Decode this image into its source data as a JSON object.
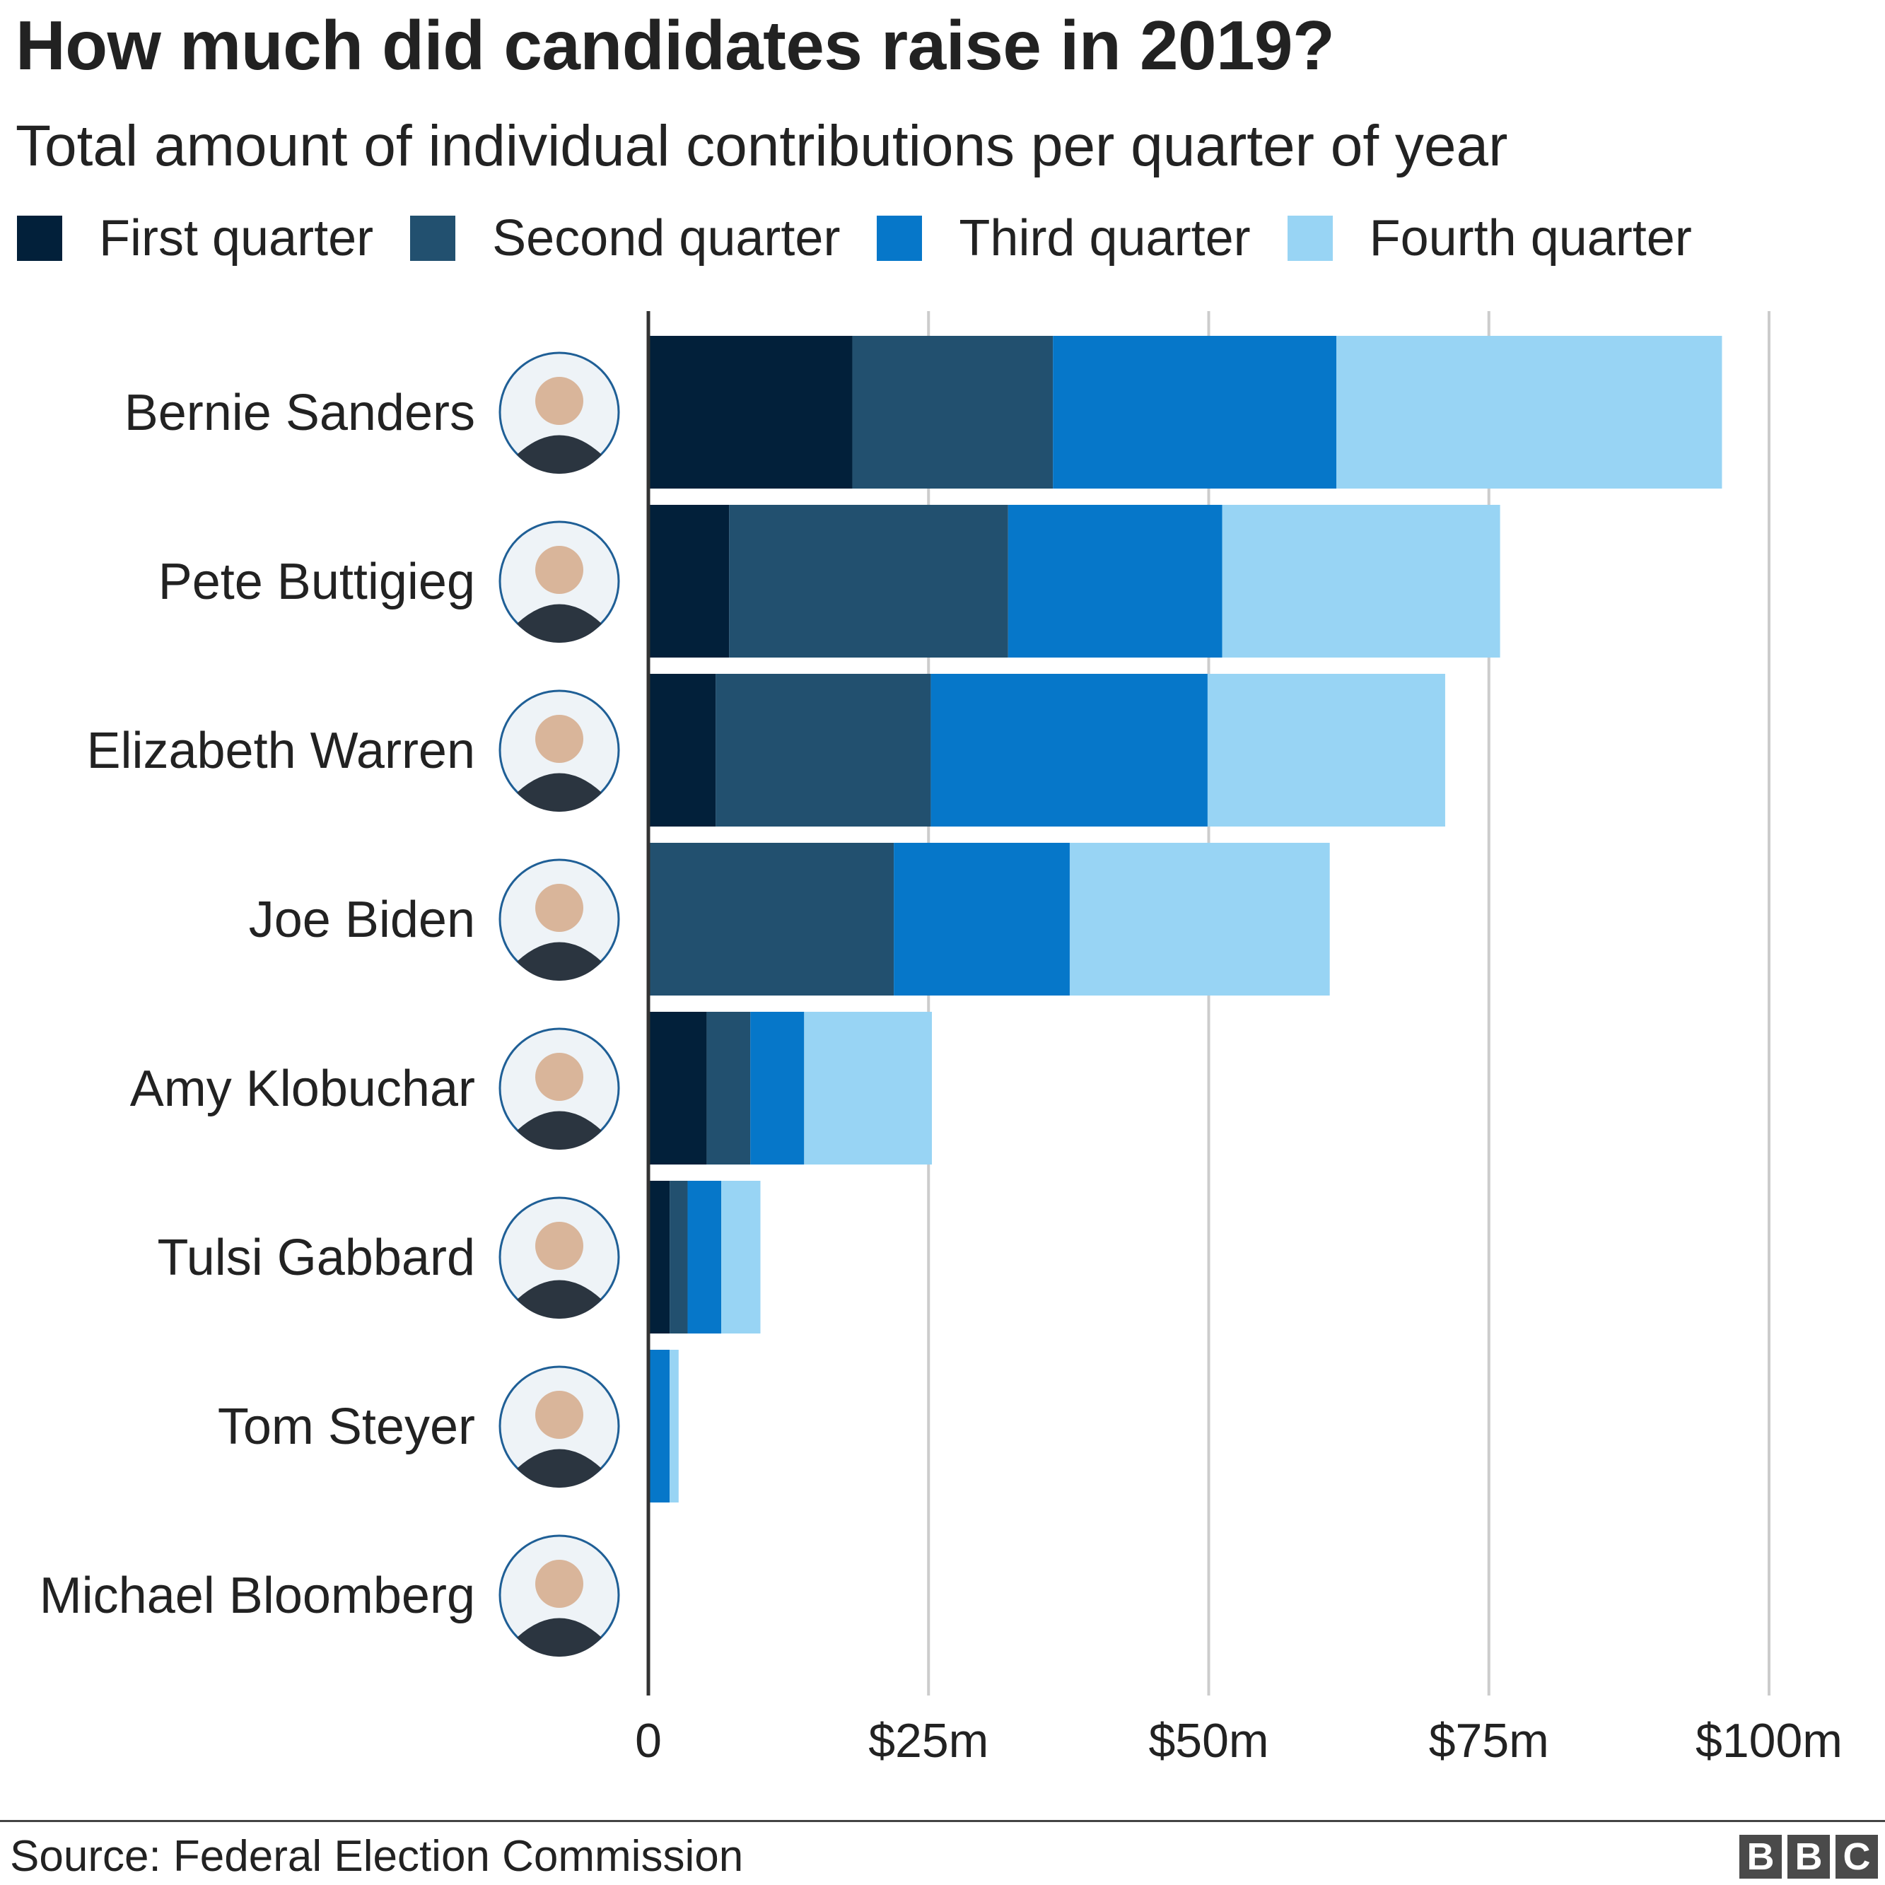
{
  "chart_data": {
    "type": "bar",
    "orientation": "horizontal",
    "stacked": true,
    "title": "How much did candidates raise in 2019?",
    "subtitle": "Total amount of individual contributions per quarter of year",
    "xlabel": "",
    "ylabel": "",
    "xlim": [
      0,
      100
    ],
    "x_ticks": [
      {
        "value": 0,
        "label": "0"
      },
      {
        "value": 25,
        "label": "$25m"
      },
      {
        "value": 50,
        "label": "$50m"
      },
      {
        "value": 75,
        "label": "$75m"
      },
      {
        "value": 100,
        "label": "$100m"
      }
    ],
    "grid": true,
    "legend_position": "top",
    "categories": [
      "Bernie Sanders",
      "Pete Buttigieg",
      "Elizabeth Warren",
      "Joe Biden",
      "Amy Klobuchar",
      "Tulsi Gabbard",
      "Tom Steyer",
      "Michael Bloomberg"
    ],
    "series": [
      {
        "name": "First quarter",
        "color": "#02203a",
        "values": [
          18.2,
          7.2,
          6.0,
          0,
          5.2,
          1.9,
          0,
          0
        ]
      },
      {
        "name": "Second quarter",
        "color": "#22506f",
        "values": [
          17.9,
          24.9,
          19.2,
          21.9,
          3.9,
          1.6,
          0,
          0
        ]
      },
      {
        "name": "Third quarter",
        "color": "#0677c9",
        "values": [
          25.3,
          19.1,
          24.7,
          15.7,
          4.8,
          3.0,
          1.9,
          0
        ]
      },
      {
        "name": "Fourth quarter",
        "color": "#98d4f4",
        "values": [
          34.4,
          24.8,
          21.2,
          23.2,
          11.4,
          3.5,
          0.8,
          0
        ]
      }
    ]
  },
  "avatar_icons": [
    "bernie-sanders-portrait-icon",
    "pete-buttigieg-portrait-icon",
    "elizabeth-warren-portrait-icon",
    "joe-biden-portrait-icon",
    "amy-klobuchar-portrait-icon",
    "tulsi-gabbard-portrait-icon",
    "tom-steyer-portrait-icon",
    "michael-bloomberg-portrait-icon"
  ],
  "footer": {
    "source": "Source: Federal Election Commission",
    "logo": [
      "B",
      "B",
      "C"
    ]
  }
}
